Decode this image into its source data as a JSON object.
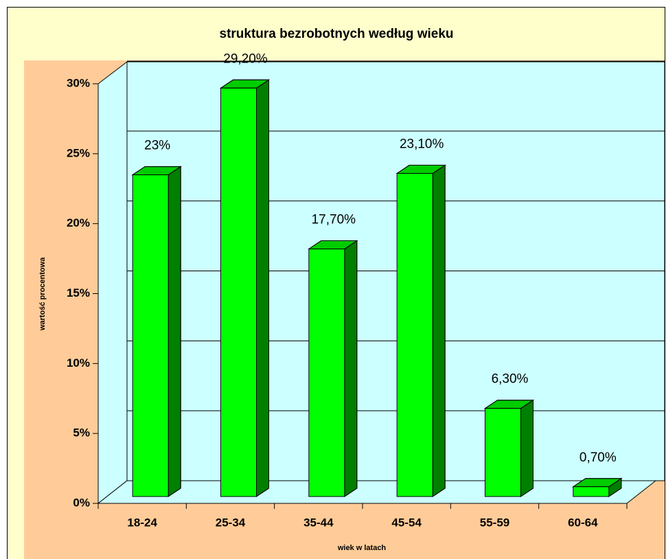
{
  "chart_data": {
    "type": "bar3d",
    "title": "struktura bezrobotnych według wieku",
    "xlabel": "wiek w latach",
    "ylabel": "wartość procentowa",
    "categories": [
      "18-24",
      "25-34",
      "35-44",
      "45-54",
      "55-59",
      "60-64"
    ],
    "values": [
      23,
      29.2,
      17.7,
      23.1,
      6.3,
      0.7
    ],
    "value_labels": [
      "23%",
      "29,20%",
      "17,70%",
      "23,10%",
      "6,30%",
      "0,70%"
    ],
    "color": "#00ff00",
    "ylim": [
      0,
      30
    ],
    "yticks": [
      {
        "value": 0,
        "label": "0%"
      },
      {
        "value": 5,
        "label": "5%"
      },
      {
        "value": 10,
        "label": "10%"
      },
      {
        "value": 15,
        "label": "15%"
      },
      {
        "value": 20,
        "label": "20%"
      },
      {
        "value": 25,
        "label": "25%"
      },
      {
        "value": 30,
        "label": "30%"
      }
    ],
    "grid": true
  }
}
